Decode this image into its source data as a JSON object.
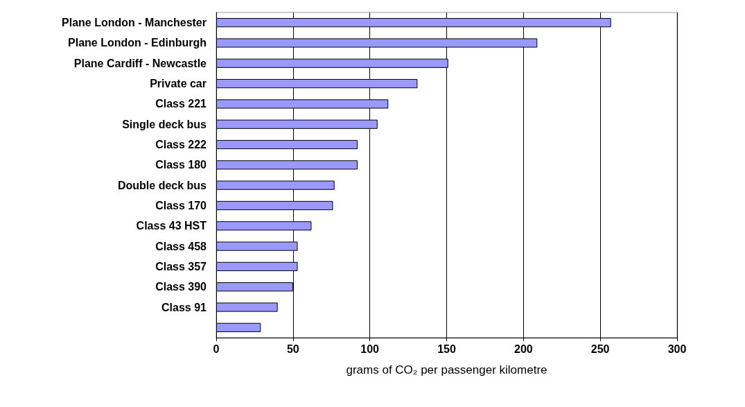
{
  "chart_data": {
    "type": "bar",
    "orientation": "horizontal",
    "xlabel": "grams of CO₂ per passenger kilometre",
    "categories": [
      "Plane London - Manchester",
      "Plane London - Edinburgh",
      "Plane Cardiff - Newcastle",
      "Private car",
      "Class 221",
      "Single deck bus",
      "Class 222",
      "Class 180",
      "Double deck bus",
      "Class 170",
      "Class 43 HST",
      "Class 458",
      "Class 357",
      "Class 390",
      "Class 91",
      null
    ],
    "values": [
      257,
      209,
      151,
      131,
      112,
      105,
      92,
      92,
      77,
      76,
      62,
      53,
      53,
      50,
      40,
      29
    ],
    "color": "#9999ff",
    "xlim": [
      0,
      300
    ],
    "xticks": [
      0,
      50,
      100,
      150,
      200,
      250,
      300
    ],
    "grid": "x"
  }
}
